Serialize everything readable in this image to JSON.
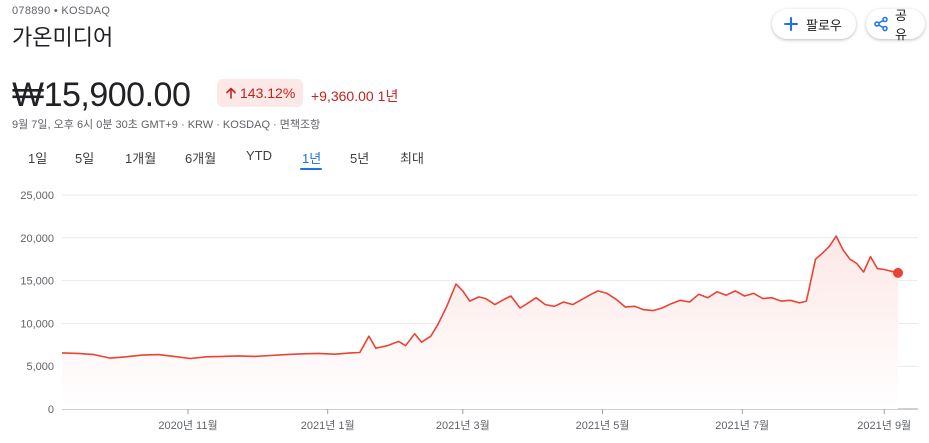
{
  "header": {
    "ticker": "078890 • KOSDAQ",
    "company": "가온미디어",
    "follow_label": "팔로우",
    "share_label": "공유"
  },
  "quote": {
    "price": "₩15,900.00",
    "change_pct": "143.12%",
    "change_abs": "+9,360.00",
    "change_period": "1년",
    "meta": "9월 7일, 오후 6시 0분 30초 GMT+9 · KRW · KOSDAQ · 면책조항"
  },
  "tabs": [
    "1일",
    "5일",
    "1개월",
    "6개월",
    "YTD",
    "1년",
    "5년",
    "최대"
  ],
  "active_tab": "1년",
  "colors": {
    "line": "#ea4335",
    "fill_top": "#fce8e6",
    "down_text": "#c5221f",
    "active_tab": "#1a73e8",
    "end_dot": "#ea4335"
  },
  "chart_data": {
    "type": "area",
    "ylim": [
      0,
      25000
    ],
    "yticks": [
      0,
      5000,
      10000,
      15000,
      20000,
      25000
    ],
    "ytick_labels": [
      "0",
      "5,000",
      "10,000",
      "15,000",
      "20,000",
      "25,000"
    ],
    "x_ticks": [
      {
        "label": "2020년 11월",
        "date": "2020-11-01"
      },
      {
        "label": "2021년 1월",
        "date": "2021-01-01"
      },
      {
        "label": "2021년 3월",
        "date": "2021-03-01"
      },
      {
        "label": "2021년 5월",
        "date": "2021-05-01"
      },
      {
        "label": "2021년 7월",
        "date": "2021-07-01"
      },
      {
        "label": "2021년 9월",
        "date": "2021-09-01"
      }
    ],
    "x_range": [
      "2020-09-07",
      "2021-09-07"
    ],
    "grid": true,
    "series": [
      {
        "points": [
          [
            "2020-09-07",
            6550
          ],
          [
            "2020-09-14",
            6500
          ],
          [
            "2020-09-21",
            6350
          ],
          [
            "2020-09-28",
            5950
          ],
          [
            "2020-10-05",
            6100
          ],
          [
            "2020-10-12",
            6300
          ],
          [
            "2020-10-19",
            6350
          ],
          [
            "2020-10-26",
            6150
          ],
          [
            "2020-11-02",
            5900
          ],
          [
            "2020-11-09",
            6100
          ],
          [
            "2020-11-16",
            6150
          ],
          [
            "2020-11-23",
            6200
          ],
          [
            "2020-11-30",
            6150
          ],
          [
            "2020-12-07",
            6250
          ],
          [
            "2020-12-14",
            6350
          ],
          [
            "2020-12-21",
            6450
          ],
          [
            "2020-12-28",
            6500
          ],
          [
            "2021-01-04",
            6400
          ],
          [
            "2021-01-11",
            6550
          ],
          [
            "2021-01-15",
            6600
          ],
          [
            "2021-01-19",
            8500
          ],
          [
            "2021-01-22",
            7100
          ],
          [
            "2021-01-27",
            7400
          ],
          [
            "2021-02-01",
            7900
          ],
          [
            "2021-02-04",
            7400
          ],
          [
            "2021-02-08",
            8800
          ],
          [
            "2021-02-11",
            7800
          ],
          [
            "2021-02-15",
            8500
          ],
          [
            "2021-02-18",
            9800
          ],
          [
            "2021-02-22",
            12000
          ],
          [
            "2021-02-26",
            14600
          ],
          [
            "2021-03-01",
            13800
          ],
          [
            "2021-03-04",
            12600
          ],
          [
            "2021-03-08",
            13100
          ],
          [
            "2021-03-11",
            12900
          ],
          [
            "2021-03-15",
            12200
          ],
          [
            "2021-03-19",
            12800
          ],
          [
            "2021-03-22",
            13200
          ],
          [
            "2021-03-26",
            11800
          ],
          [
            "2021-03-29",
            12300
          ],
          [
            "2021-04-02",
            13000
          ],
          [
            "2021-04-06",
            12200
          ],
          [
            "2021-04-10",
            12000
          ],
          [
            "2021-04-14",
            12500
          ],
          [
            "2021-04-18",
            12200
          ],
          [
            "2021-04-22",
            12800
          ],
          [
            "2021-04-26",
            13400
          ],
          [
            "2021-04-29",
            13800
          ],
          [
            "2021-05-03",
            13500
          ],
          [
            "2021-05-07",
            12800
          ],
          [
            "2021-05-11",
            11900
          ],
          [
            "2021-05-15",
            12000
          ],
          [
            "2021-05-19",
            11600
          ],
          [
            "2021-05-23",
            11500
          ],
          [
            "2021-05-27",
            11800
          ],
          [
            "2021-05-31",
            12300
          ],
          [
            "2021-06-04",
            12700
          ],
          [
            "2021-06-08",
            12500
          ],
          [
            "2021-06-12",
            13400
          ],
          [
            "2021-06-16",
            13000
          ],
          [
            "2021-06-20",
            13700
          ],
          [
            "2021-06-24",
            13300
          ],
          [
            "2021-06-28",
            13800
          ],
          [
            "2021-07-02",
            13200
          ],
          [
            "2021-07-06",
            13500
          ],
          [
            "2021-07-10",
            12900
          ],
          [
            "2021-07-14",
            13000
          ],
          [
            "2021-07-18",
            12600
          ],
          [
            "2021-07-22",
            12700
          ],
          [
            "2021-07-26",
            12400
          ],
          [
            "2021-07-29",
            12600
          ],
          [
            "2021-08-02",
            17500
          ],
          [
            "2021-08-05",
            18200
          ],
          [
            "2021-08-08",
            19000
          ],
          [
            "2021-08-11",
            20200
          ],
          [
            "2021-08-14",
            18600
          ],
          [
            "2021-08-17",
            17500
          ],
          [
            "2021-08-20",
            17000
          ],
          [
            "2021-08-23",
            16000
          ],
          [
            "2021-08-26",
            17800
          ],
          [
            "2021-08-29",
            16400
          ],
          [
            "2021-09-01",
            16300
          ],
          [
            "2021-09-04",
            16100
          ],
          [
            "2021-09-07",
            15900
          ]
        ]
      }
    ]
  }
}
